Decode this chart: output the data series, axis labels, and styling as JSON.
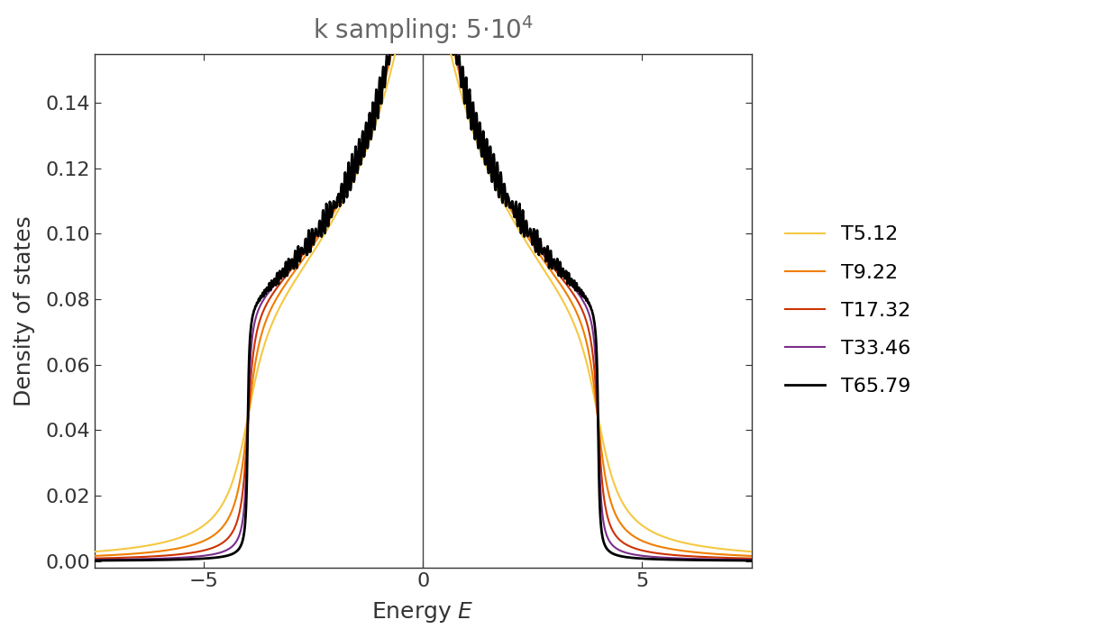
{
  "title": "k sampling: 5·10⁴",
  "ylabel": "Density of states",
  "xlim": [
    -7.5,
    7.5
  ],
  "ylim": [
    -0.002,
    0.155
  ],
  "yticks": [
    0.0,
    0.02,
    0.04,
    0.06,
    0.08,
    0.1,
    0.12,
    0.14
  ],
  "xticks": [
    -5,
    0,
    5
  ],
  "series": [
    {
      "label": "T5.12",
      "color": "#F5C842",
      "lw": 1.5,
      "eta": 0.4
    },
    {
      "label": "T9.22",
      "color": "#F07E00",
      "lw": 1.5,
      "eta": 0.22
    },
    {
      "label": "T17.32",
      "color": "#CC3300",
      "lw": 1.5,
      "eta": 0.115
    },
    {
      "label": "T33.46",
      "color": "#7B2D8B",
      "lw": 1.5,
      "eta": 0.058
    },
    {
      "label": "T65.79",
      "color": "#000000",
      "lw": 2.0,
      "eta": 0.028
    }
  ],
  "vline_x": 0,
  "vline_color": "#444444",
  "title_color": "#666666",
  "axis_label_color": "#333333",
  "background_color": "#ffffff",
  "legend_fontsize": 16,
  "axis_fontsize": 18,
  "title_fontsize": 20,
  "tick_fontsize": 16
}
